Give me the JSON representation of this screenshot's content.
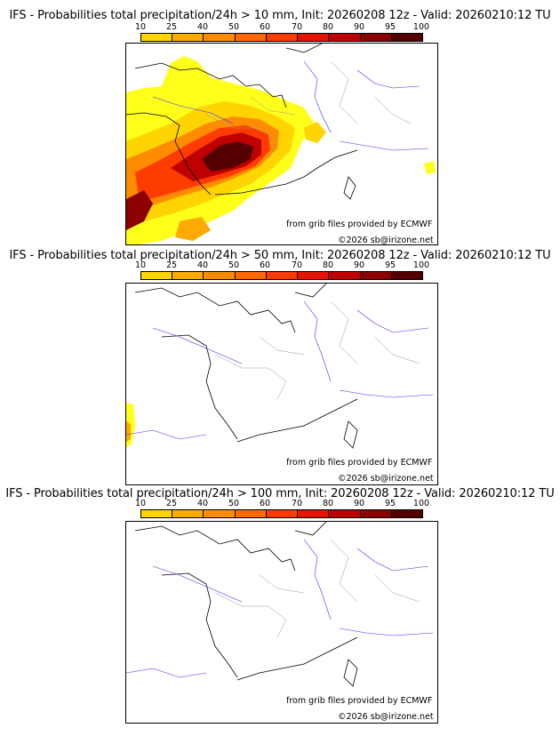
{
  "legend": {
    "ticks": [
      "10",
      "25",
      "40",
      "50",
      "60",
      "70",
      "80",
      "90",
      "95",
      "100"
    ],
    "colors": [
      "#ffff1a",
      "#ffd400",
      "#ffaa00",
      "#ff8c00",
      "#ff6a00",
      "#ff3c00",
      "#e61400",
      "#bf0000",
      "#8c0000",
      "#550000"
    ]
  },
  "panels": [
    {
      "title": "IFS - Probabilities total precipitation/24h > 10 mm, Init: 20260208 12z - Valid: 20260210:12 TU",
      "credit": "from grib files provided by ECMWF",
      "copyright": "©2026 sb@irizone.net"
    },
    {
      "title": "IFS - Probabilities total precipitation/24h > 50 mm, Init: 20260208 12z - Valid: 20260210:12 TU",
      "credit": "from grib files provided by ECMWF",
      "copyright": "©2026 sb@irizone.net"
    },
    {
      "title": "IFS - Probabilities total precipitation/24h > 100 mm, Init: 20260208 12z - Valid: 20260210:12 TU",
      "credit": "from grib files provided by ECMWF",
      "copyright": "©2026 sb@irizone.net"
    }
  ],
  "colors": {
    "coast": "#000000",
    "river": "#3333ff",
    "border": "#999999"
  }
}
